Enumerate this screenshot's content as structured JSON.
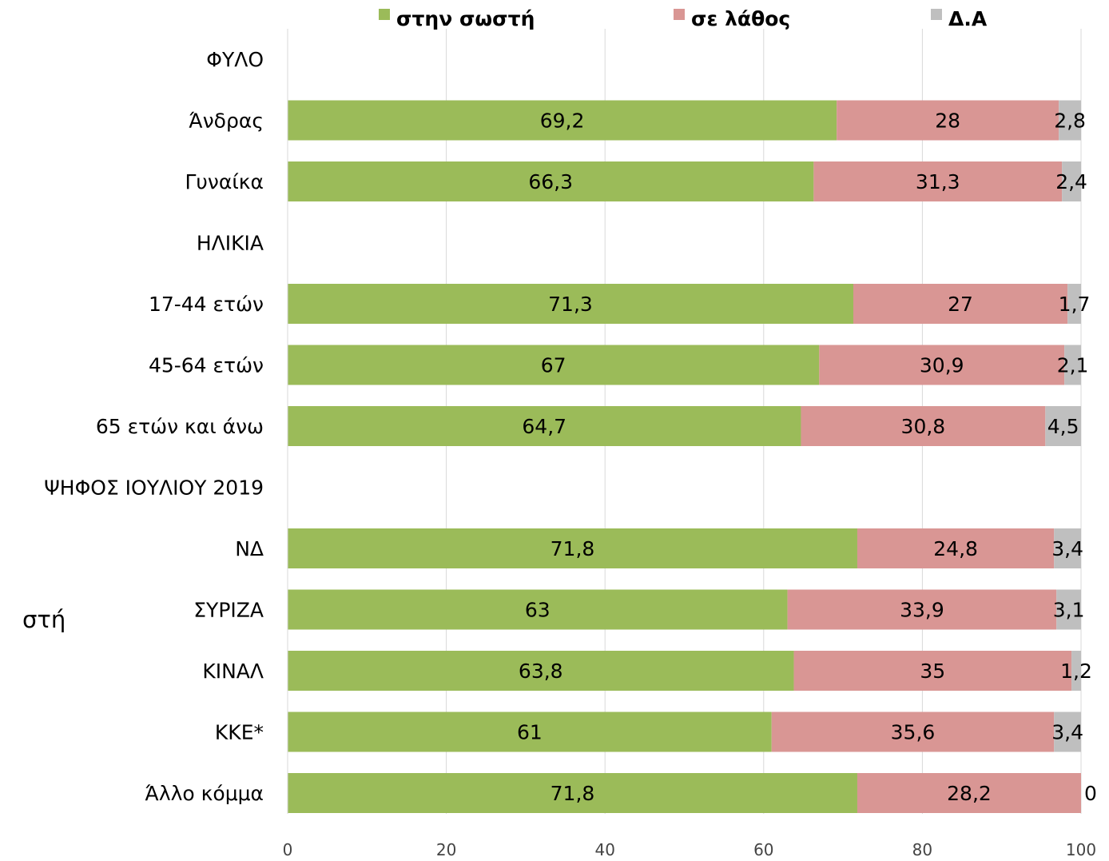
{
  "chart_data": {
    "type": "bar",
    "orientation": "horizontal",
    "stacked": true,
    "categories": [
      "ΦΥΛΟ",
      "Άνδρας",
      "Γυναίκα",
      "ΗΛΙΚΙΑ",
      "17-44 ετών",
      "45-64 ετών",
      "65 ετών και άνω",
      "ΨΗΦΟΣ ΙΟΥΛΙΟΥ 2019",
      "ΝΔ",
      "ΣΥΡΙΖΑ",
      "ΚΙΝΑΛ",
      "ΚΚΕ*",
      "Άλλο κόμμα"
    ],
    "series": [
      {
        "name": "στην σωστή",
        "color": "#9bbb59",
        "values": [
          null,
          69.2,
          66.3,
          null,
          71.3,
          67,
          64.7,
          null,
          71.8,
          63,
          63.8,
          61,
          71.8
        ]
      },
      {
        "name": "σε λάθος",
        "color": "#d99694",
        "values": [
          null,
          28,
          31.3,
          null,
          27,
          30.9,
          30.8,
          null,
          24.8,
          33.9,
          35,
          35.6,
          28.2
        ]
      },
      {
        "name": "Δ.Α",
        "color": "#bfbfbf",
        "values": [
          null,
          2.8,
          2.4,
          null,
          1.7,
          2.1,
          4.5,
          null,
          3.4,
          3.1,
          1.2,
          3.4,
          0
        ]
      }
    ],
    "data_labels": [
      [
        null,
        "69,2",
        "66,3",
        null,
        "71,3",
        "67",
        "64,7",
        null,
        "71,8",
        "63",
        "63,8",
        "61",
        "71,8"
      ],
      [
        null,
        "28",
        "31,3",
        null,
        "27",
        "30,9",
        "30,8",
        null,
        "24,8",
        "33,9",
        "35",
        "35,6",
        "28,2"
      ],
      [
        null,
        "2,8",
        "2,4",
        null,
        "1,7",
        "2,1",
        "4,5",
        null,
        "3,4",
        "3,1",
        "1,2",
        "3,4",
        "0"
      ]
    ],
    "xlim": [
      0,
      100
    ],
    "xticks": [
      0,
      20,
      40,
      60,
      80,
      100
    ],
    "grid": true,
    "legend_position": "top",
    "side_text": "στή"
  }
}
